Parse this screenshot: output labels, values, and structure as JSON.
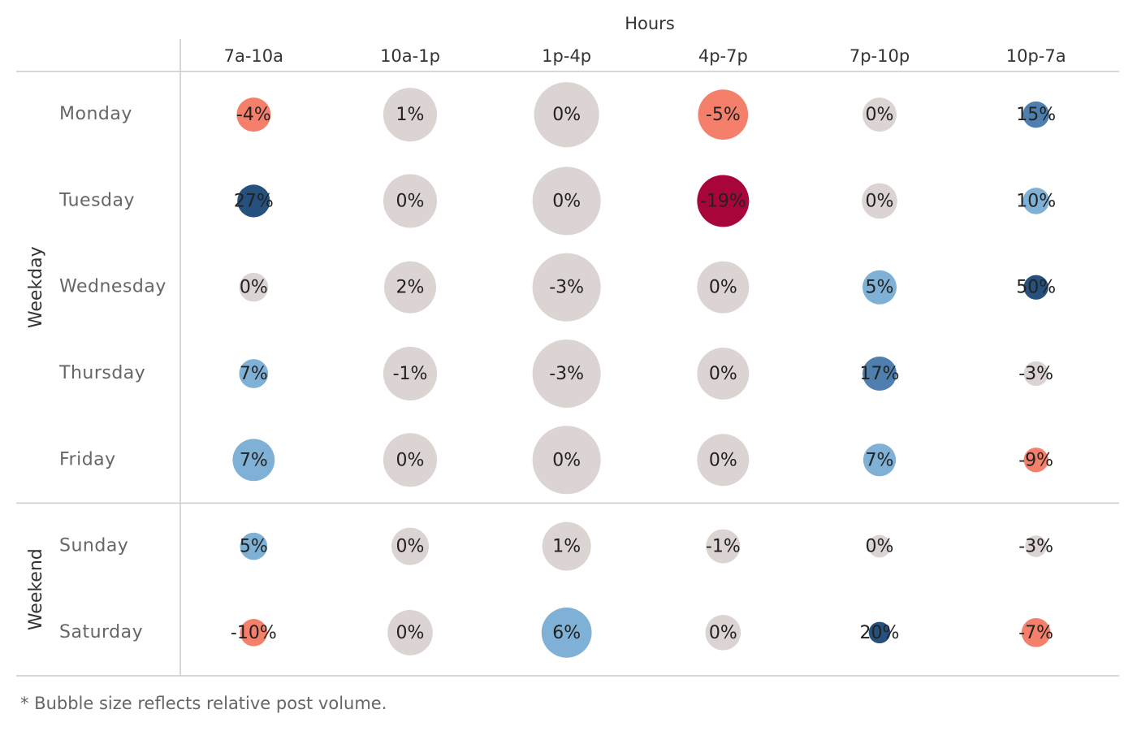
{
  "chart_data": {
    "type": "bubble_grid",
    "x_label": "Hours",
    "columns": [
      "7a-10a",
      "10a-1p",
      "1p-4p",
      "4p-7p",
      "7p-10p",
      "10p-7a"
    ],
    "groups": [
      {
        "name": "Weekday",
        "rows": [
          {
            "name": "Monday",
            "values": [
              -4,
              1,
              0,
              -5,
              0,
              15
            ],
            "value_labels": [
              "-4%",
              "1%",
              "0%",
              "-5%",
              "0%",
              "15%"
            ],
            "sizes": [
              25,
              62,
              91,
              54,
              25,
              15
            ],
            "colors": [
              "#f4806b",
              "#dcd3d3",
              "#dcd3d3",
              "#f4806b",
              "#dcd3d3",
              "#4f7fae"
            ]
          },
          {
            "name": "Tuesday",
            "values": [
              27,
              0,
              0,
              -19,
              0,
              10
            ],
            "value_labels": [
              "27%",
              "0%",
              "0%",
              "-19%",
              "0%",
              "10%"
            ],
            "sizes": [
              23,
              62,
              100,
              58,
              27,
              15
            ],
            "colors": [
              "#26507e",
              "#dcd3d3",
              "#dcd3d3",
              "#a8063a",
              "#dcd3d3",
              "#7fb0d5"
            ]
          },
          {
            "name": "Wednesday",
            "values": [
              0,
              2,
              -3,
              0,
              5,
              50
            ],
            "value_labels": [
              "0%",
              "2%",
              "-3%",
              "0%",
              "5%",
              "50%"
            ],
            "sizes": [
              18,
              58,
              100,
              58,
              25,
              13
            ],
            "colors": [
              "#dcd3d3",
              "#dcd3d3",
              "#dcd3d3",
              "#dcd3d3",
              "#7fb0d5",
              "#26507e"
            ]
          },
          {
            "name": "Thursday",
            "values": [
              7,
              -1,
              -3,
              0,
              17,
              -3
            ],
            "value_labels": [
              "7%",
              "-1%",
              "-3%",
              "0%",
              "17%",
              "-3%"
            ],
            "sizes": [
              18,
              62,
              100,
              58,
              25,
              13
            ],
            "colors": [
              "#7fb0d5",
              "#dcd3d3",
              "#dcd3d3",
              "#dcd3d3",
              "#4f7fae",
              "#dcd3d3"
            ]
          },
          {
            "name": "Friday",
            "values": [
              7,
              0,
              0,
              0,
              7,
              -9
            ],
            "value_labels": [
              "7%",
              "0%",
              "0%",
              "0%",
              "7%",
              "-9%"
            ],
            "sizes": [
              38,
              62,
              100,
              58,
              23,
              13
            ],
            "colors": [
              "#7fb0d5",
              "#dcd3d3",
              "#dcd3d3",
              "#dcd3d3",
              "#7fb0d5",
              "#f4806b"
            ]
          }
        ]
      },
      {
        "name": "Weekend",
        "rows": [
          {
            "name": "Sunday",
            "values": [
              5,
              0,
              1,
              -1,
              0,
              -3
            ],
            "value_labels": [
              "5%",
              "0%",
              "1%",
              "-1%",
              "0%",
              "-3%"
            ],
            "sizes": [
              16,
              30,
              51,
              25,
              11,
              10
            ],
            "colors": [
              "#7fb0d5",
              "#dcd3d3",
              "#dcd3d3",
              "#dcd3d3",
              "#dcd3d3",
              "#dcd3d3"
            ]
          },
          {
            "name": "Saturday",
            "values": [
              -10,
              0,
              6,
              0,
              20,
              -7
            ],
            "value_labels": [
              "-10%",
              "0%",
              "6%",
              "0%",
              "20%",
              "-7%"
            ],
            "sizes": [
              16,
              44,
              54,
              27,
              10,
              18
            ],
            "colors": [
              "#f4806b",
              "#dcd3d3",
              "#7fb0d5",
              "#dcd3d3",
              "#26507e",
              "#f4806b"
            ]
          }
        ]
      }
    ],
    "note": "* Bubble size reflects relative post volume."
  }
}
